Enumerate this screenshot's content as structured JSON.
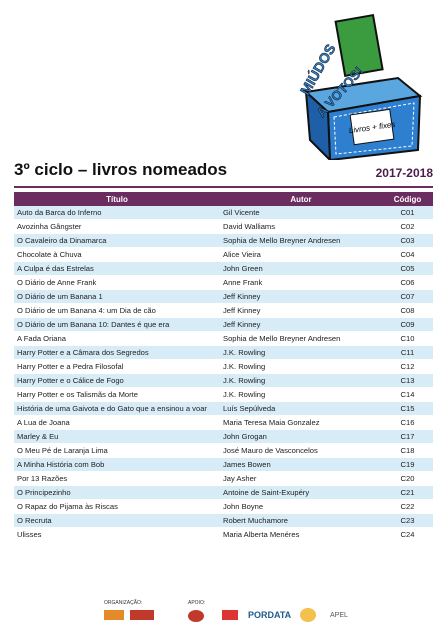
{
  "logo": {
    "line1": "MIÚDOS",
    "line2": "A VOTOS!",
    "box": "Livros + fixes"
  },
  "header": {
    "title": "3º ciclo – livros nomeados",
    "year": "2017-2018"
  },
  "table": {
    "columns": [
      "Título",
      "Autor",
      "Código"
    ],
    "rows": [
      [
        "Auto da Barca do Inferno",
        "Gil Vicente",
        "C01"
      ],
      [
        "Avozinha Gângster",
        "David Walliams",
        "C02"
      ],
      [
        "O Cavaleiro da Dinamarca",
        "Sophia de Mello Breyner Andresen",
        "C03"
      ],
      [
        "Chocolate à Chuva",
        "Alice Vieira",
        "C04"
      ],
      [
        "A Culpa é das Estrelas",
        "John Green",
        "C05"
      ],
      [
        "O Diário de Anne Frank",
        "Anne Frank",
        "C06"
      ],
      [
        "O Diário de um Banana 1",
        "Jeff Kinney",
        "C07"
      ],
      [
        "O Diário de um Banana  4: um Dia de cão",
        "Jeff Kinney",
        "C08"
      ],
      [
        "O Diário de um Banana 10: Dantes é que era",
        "Jeff Kinney",
        "C09"
      ],
      [
        "A Fada Oriana",
        "Sophia de Mello Breyner Andresen",
        "C10"
      ],
      [
        "Harry Potter e a Câmara dos Segredos",
        "J.K. Rowling",
        "C11"
      ],
      [
        "Harry Potter e a Pedra Filosofal",
        "J.K. Rowling",
        "C12"
      ],
      [
        "Harry Potter e o Cálice de Fogo",
        "J.K. Rowling",
        "C13"
      ],
      [
        "Harry Potter e os Talismãs da Morte",
        "J.K. Rowling",
        "C14"
      ],
      [
        "História de uma Gaivota e do Gato que a ensinou a voar",
        "Luís Sepúlveda",
        "C15"
      ],
      [
        "A Lua de Joana",
        "Maria Teresa Maia Gonzalez",
        "C16"
      ],
      [
        "Marley & Eu",
        "John Grogan",
        "C17"
      ],
      [
        "O Meu Pé de Laranja Lima",
        "José Mauro de Vasconcelos",
        "C18"
      ],
      [
        "A Minha História com Bob",
        "James Bowen",
        "C19"
      ],
      [
        "Por 13 Razões",
        "Jay Asher",
        "C20"
      ],
      [
        "O Principezinho",
        "Antoine de Saint-Exupéry",
        "C21"
      ],
      [
        "O Rapaz do Pijama às Riscas",
        "John Boyne",
        "C22"
      ],
      [
        "O Recruta",
        "Robert Muchamore",
        "C23"
      ],
      [
        "Ulisses",
        "Maria Alberta Menéres",
        "C24"
      ]
    ]
  },
  "footer": {
    "organization": "ORGANIZAÇÃO:",
    "support": "APOIO:",
    "sponsors": [
      "PORDATA",
      "APEL"
    ]
  }
}
